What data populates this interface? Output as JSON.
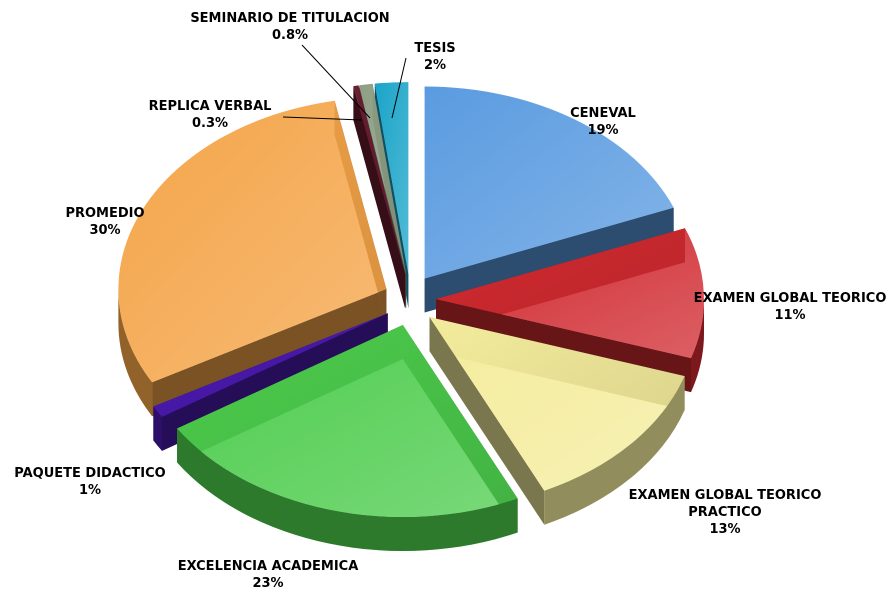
{
  "chart_data": {
    "type": "pie",
    "categories": [
      "CENEVAL",
      "EXAMEN GLOBAL TEORICO",
      "EXAMEN GLOBAL TEORICO PRACTICO",
      "EXCELENCIA ACADEMICA",
      "PAQUETE DIDACTICO",
      "PROMEDIO",
      "REPLICA VERBAL",
      "SEMINARIO DE TITULACION",
      "TESIS"
    ],
    "values": [
      19,
      11,
      13,
      23,
      1,
      30,
      0.3,
      0.8,
      2
    ],
    "value_labels": [
      "19%",
      "11%",
      "13%",
      "23%",
      "1%",
      "30%",
      "0.3%",
      "0.8%",
      "2%"
    ],
    "colors": [
      "#5a9be0",
      "#d02a30",
      "#f4ec9c",
      "#4ccc4c",
      "#4a1ab0",
      "#f4a448",
      "#6a1c30",
      "#8e9e84",
      "#1aa4c8"
    ]
  }
}
